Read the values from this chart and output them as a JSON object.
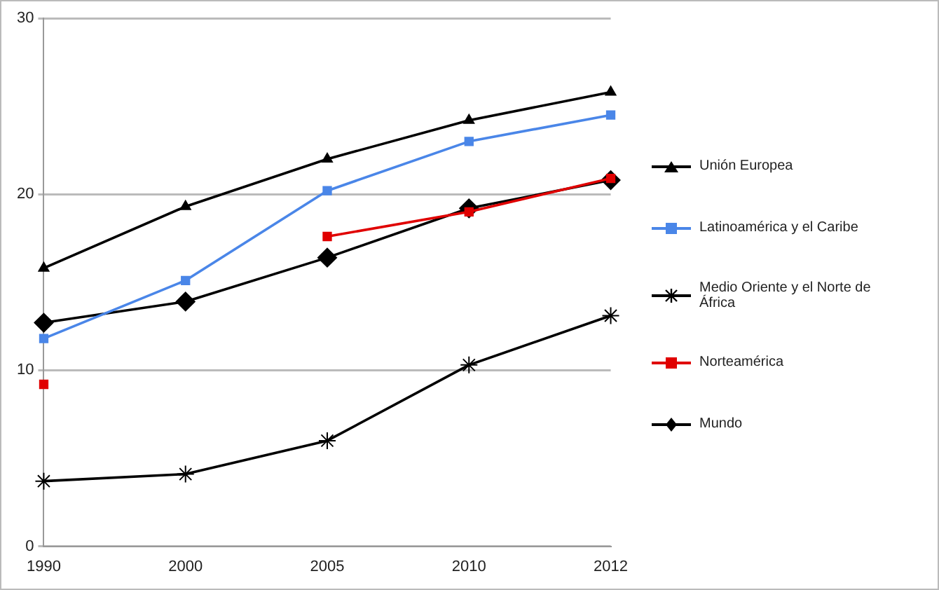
{
  "chart_data": {
    "type": "line",
    "categories": [
      "1990",
      "2000",
      "2005",
      "2010",
      "2012"
    ],
    "series": [
      {
        "name": "Unión Europea",
        "color": "#000000",
        "marker": "triangle",
        "values": [
          15.8,
          19.3,
          22.0,
          24.2,
          25.8
        ]
      },
      {
        "name": "Latinoamérica y el Caribe",
        "color": "#4a86e8",
        "marker": "square",
        "values": [
          11.8,
          15.1,
          20.2,
          23.0,
          24.5
        ]
      },
      {
        "name": "Medio Oriente y el Norte de  África",
        "color": "#000000",
        "marker": "cross",
        "values": [
          3.7,
          4.1,
          6.0,
          10.3,
          13.1
        ]
      },
      {
        "name": "Norteamérica",
        "color": "#e00000",
        "marker": "square",
        "values": [
          9.2,
          null,
          17.6,
          19.0,
          20.9
        ]
      },
      {
        "name": "Mundo",
        "color": "#000000",
        "marker": "diamond",
        "values": [
          12.7,
          13.9,
          16.4,
          19.2,
          20.8
        ]
      }
    ],
    "ylim": [
      0,
      30
    ],
    "yticks": [
      0,
      10,
      20,
      30
    ],
    "grid": "y",
    "legend": "right"
  }
}
